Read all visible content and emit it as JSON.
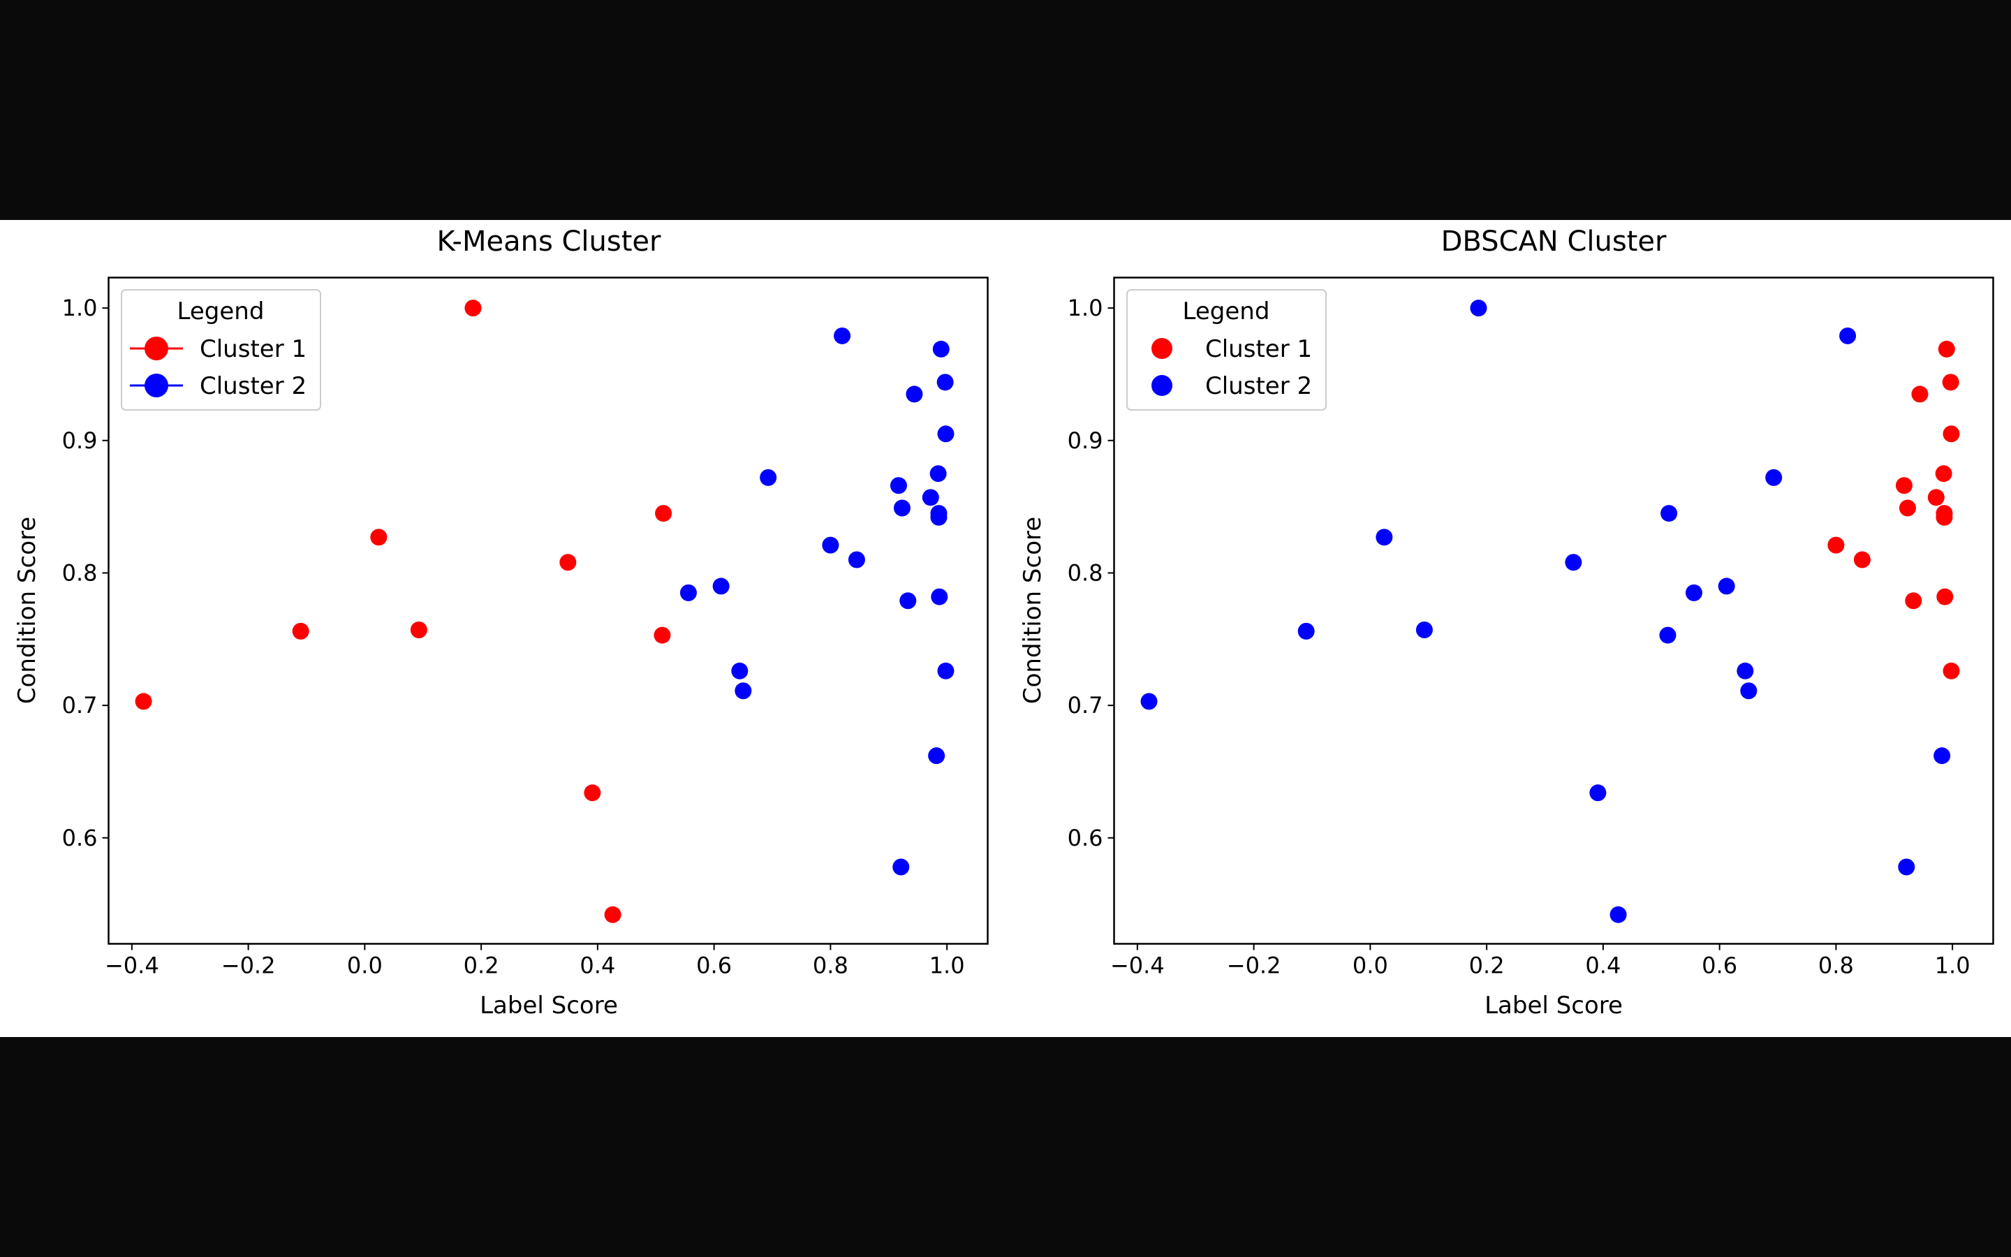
{
  "chart_data": [
    {
      "type": "scatter",
      "title": "K-Means Cluster",
      "xlabel": "Label Score",
      "ylabel": "Condition Score",
      "xlim": [
        -0.44,
        1.07
      ],
      "ylim": [
        0.52,
        1.023
      ],
      "xticks": [
        -0.4,
        -0.2,
        0.0,
        0.2,
        0.4,
        0.6,
        0.8,
        1.0
      ],
      "xtick_labels": [
        "−0.4",
        "−0.2",
        "0.0",
        "0.2",
        "0.4",
        "0.6",
        "0.8",
        "1.0"
      ],
      "yticks": [
        0.6,
        0.7,
        0.8,
        0.9,
        1.0
      ],
      "ytick_labels": [
        "0.6",
        "0.7",
        "0.8",
        "0.9",
        "1.0"
      ],
      "grid": false,
      "legend": {
        "title": "Legend",
        "placement": "top-left",
        "style": "line-marker",
        "entries": [
          {
            "label": "Cluster 1",
            "color": "#ff0000"
          },
          {
            "label": "Cluster 2",
            "color": "#0000ff"
          }
        ]
      },
      "points": [
        {
          "x": -0.38,
          "y": 0.703,
          "c": 0
        },
        {
          "x": -0.11,
          "y": 0.756,
          "c": 0
        },
        {
          "x": 0.024,
          "y": 0.827,
          "c": 0
        },
        {
          "x": 0.093,
          "y": 0.757,
          "c": 0
        },
        {
          "x": 0.186,
          "y": 1.0,
          "c": 0
        },
        {
          "x": 0.349,
          "y": 0.808,
          "c": 0
        },
        {
          "x": 0.391,
          "y": 0.634,
          "c": 0
        },
        {
          "x": 0.426,
          "y": 0.542,
          "c": 0
        },
        {
          "x": 0.511,
          "y": 0.753,
          "c": 0
        },
        {
          "x": 0.513,
          "y": 0.845,
          "c": 0
        },
        {
          "x": 0.556,
          "y": 0.785,
          "c": 1
        },
        {
          "x": 0.612,
          "y": 0.79,
          "c": 1
        },
        {
          "x": 0.644,
          "y": 0.726,
          "c": 1
        },
        {
          "x": 0.65,
          "y": 0.711,
          "c": 1
        },
        {
          "x": 0.693,
          "y": 0.872,
          "c": 1
        },
        {
          "x": 0.8,
          "y": 0.821,
          "c": 1
        },
        {
          "x": 0.82,
          "y": 0.979,
          "c": 1
        },
        {
          "x": 0.845,
          "y": 0.81,
          "c": 1
        },
        {
          "x": 0.917,
          "y": 0.866,
          "c": 1
        },
        {
          "x": 0.921,
          "y": 0.578,
          "c": 1
        },
        {
          "x": 0.923,
          "y": 0.849,
          "c": 1
        },
        {
          "x": 0.933,
          "y": 0.779,
          "c": 1
        },
        {
          "x": 0.944,
          "y": 0.935,
          "c": 1
        },
        {
          "x": 0.972,
          "y": 0.857,
          "c": 1
        },
        {
          "x": 0.982,
          "y": 0.662,
          "c": 1
        },
        {
          "x": 0.985,
          "y": 0.875,
          "c": 1
        },
        {
          "x": 0.986,
          "y": 0.842,
          "c": 1
        },
        {
          "x": 0.986,
          "y": 0.845,
          "c": 1
        },
        {
          "x": 0.987,
          "y": 0.782,
          "c": 1
        },
        {
          "x": 0.99,
          "y": 0.969,
          "c": 1
        },
        {
          "x": 0.997,
          "y": 0.944,
          "c": 1
        },
        {
          "x": 0.998,
          "y": 0.905,
          "c": 1
        },
        {
          "x": 0.998,
          "y": 0.726,
          "c": 1
        }
      ]
    },
    {
      "type": "scatter",
      "title": "DBSCAN Cluster",
      "xlabel": "Label Score",
      "ylabel": "Condition Score",
      "xlim": [
        -0.44,
        1.07
      ],
      "ylim": [
        0.52,
        1.023
      ],
      "xticks": [
        -0.4,
        -0.2,
        0.0,
        0.2,
        0.4,
        0.6,
        0.8,
        1.0
      ],
      "xtick_labels": [
        "−0.4",
        "−0.2",
        "0.0",
        "0.2",
        "0.4",
        "0.6",
        "0.8",
        "1.0"
      ],
      "yticks": [
        0.6,
        0.7,
        0.8,
        0.9,
        1.0
      ],
      "ytick_labels": [
        "0.6",
        "0.7",
        "0.8",
        "0.9",
        "1.0"
      ],
      "grid": false,
      "legend": {
        "title": "Legend",
        "placement": "top-left",
        "style": "marker",
        "entries": [
          {
            "label": "Cluster 1",
            "color": "#ff0000"
          },
          {
            "label": "Cluster 2",
            "color": "#0000ff"
          }
        ]
      },
      "points": [
        {
          "x": -0.38,
          "y": 0.703,
          "c": 1
        },
        {
          "x": -0.11,
          "y": 0.756,
          "c": 1
        },
        {
          "x": 0.024,
          "y": 0.827,
          "c": 1
        },
        {
          "x": 0.093,
          "y": 0.757,
          "c": 1
        },
        {
          "x": 0.186,
          "y": 1.0,
          "c": 1
        },
        {
          "x": 0.349,
          "y": 0.808,
          "c": 1
        },
        {
          "x": 0.391,
          "y": 0.634,
          "c": 1
        },
        {
          "x": 0.426,
          "y": 0.542,
          "c": 1
        },
        {
          "x": 0.511,
          "y": 0.753,
          "c": 1
        },
        {
          "x": 0.513,
          "y": 0.845,
          "c": 1
        },
        {
          "x": 0.556,
          "y": 0.785,
          "c": 1
        },
        {
          "x": 0.612,
          "y": 0.79,
          "c": 1
        },
        {
          "x": 0.644,
          "y": 0.726,
          "c": 1
        },
        {
          "x": 0.65,
          "y": 0.711,
          "c": 1
        },
        {
          "x": 0.693,
          "y": 0.872,
          "c": 1
        },
        {
          "x": 0.8,
          "y": 0.821,
          "c": 0
        },
        {
          "x": 0.82,
          "y": 0.979,
          "c": 1
        },
        {
          "x": 0.845,
          "y": 0.81,
          "c": 0
        },
        {
          "x": 0.917,
          "y": 0.866,
          "c": 0
        },
        {
          "x": 0.921,
          "y": 0.578,
          "c": 1
        },
        {
          "x": 0.923,
          "y": 0.849,
          "c": 0
        },
        {
          "x": 0.933,
          "y": 0.779,
          "c": 0
        },
        {
          "x": 0.944,
          "y": 0.935,
          "c": 0
        },
        {
          "x": 0.972,
          "y": 0.857,
          "c": 0
        },
        {
          "x": 0.982,
          "y": 0.662,
          "c": 1
        },
        {
          "x": 0.985,
          "y": 0.875,
          "c": 0
        },
        {
          "x": 0.986,
          "y": 0.842,
          "c": 0
        },
        {
          "x": 0.986,
          "y": 0.845,
          "c": 0
        },
        {
          "x": 0.987,
          "y": 0.782,
          "c": 0
        },
        {
          "x": 0.99,
          "y": 0.969,
          "c": 0
        },
        {
          "x": 0.997,
          "y": 0.944,
          "c": 0
        },
        {
          "x": 0.998,
          "y": 0.905,
          "c": 0
        },
        {
          "x": 0.998,
          "y": 0.726,
          "c": 0
        }
      ]
    }
  ]
}
